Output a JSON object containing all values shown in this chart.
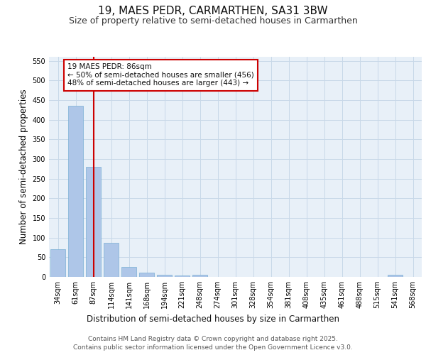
{
  "title": "19, MAES PEDR, CARMARTHEN, SA31 3BW",
  "subtitle": "Size of property relative to semi-detached houses in Carmarthen",
  "xlabel": "Distribution of semi-detached houses by size in Carmarthen",
  "ylabel": "Number of semi-detached properties",
  "categories": [
    "34sqm",
    "61sqm",
    "87sqm",
    "114sqm",
    "141sqm",
    "168sqm",
    "194sqm",
    "221sqm",
    "248sqm",
    "274sqm",
    "301sqm",
    "328sqm",
    "354sqm",
    "381sqm",
    "408sqm",
    "435sqm",
    "461sqm",
    "488sqm",
    "515sqm",
    "541sqm",
    "568sqm"
  ],
  "values": [
    70,
    435,
    280,
    87,
    25,
    11,
    5,
    4,
    6,
    0,
    0,
    0,
    0,
    0,
    0,
    0,
    0,
    0,
    0,
    5,
    0
  ],
  "bar_color": "#aec6e8",
  "bar_edge_color": "#7aafd4",
  "grid_color": "#c8d8e8",
  "background_color": "#e8f0f8",
  "vline_x_index": 2,
  "vline_color": "#cc0000",
  "annotation_text": "19 MAES PEDR: 86sqm\n← 50% of semi-detached houses are smaller (456)\n48% of semi-detached houses are larger (443) →",
  "annotation_box_color": "#cc0000",
  "ylim": [
    0,
    560
  ],
  "yticks": [
    0,
    50,
    100,
    150,
    200,
    250,
    300,
    350,
    400,
    450,
    500,
    550
  ],
  "footer_line1": "Contains HM Land Registry data © Crown copyright and database right 2025.",
  "footer_line2": "Contains public sector information licensed under the Open Government Licence v3.0.",
  "title_fontsize": 11,
  "subtitle_fontsize": 9,
  "axis_label_fontsize": 8.5,
  "tick_fontsize": 7,
  "annotation_fontsize": 7.5,
  "footer_fontsize": 6.5
}
